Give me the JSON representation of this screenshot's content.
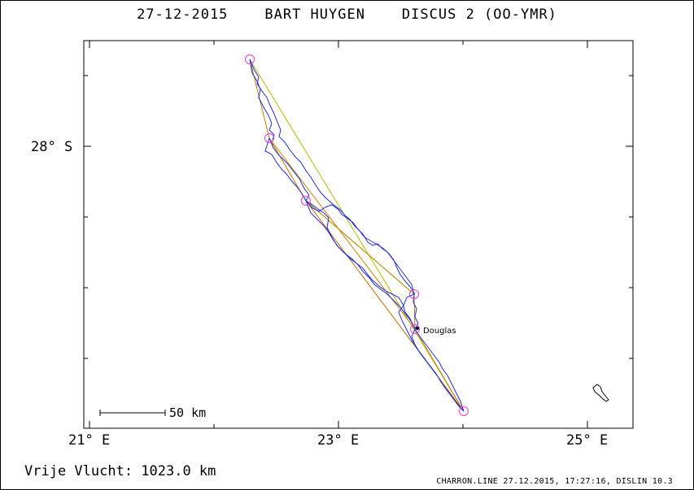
{
  "header": {
    "date": "27-12-2015",
    "pilot": "BART HUYGEN",
    "glider": "DISCUS 2 (OO-YMR)"
  },
  "axes": {
    "lat_label": "28° S",
    "lon_labels": [
      "21° E",
      "23° E",
      "25° E"
    ]
  },
  "scale_bar": {
    "label": "50 km"
  },
  "places": [
    {
      "name": "Douglas"
    }
  ],
  "footer": {
    "distance": "Vrije Vlucht: 1023.0 km",
    "info": "CHARRON.LINE 27.12.2015, 17:27:16, DISLIN 10.3"
  },
  "colors": {
    "track": "#1f2dd6",
    "task_line": "#c88a00",
    "turnpoint": "#e23be0",
    "frame": "#000000"
  },
  "turnpoints": [
    {
      "lon": 22.3,
      "lat": -27.4
    },
    {
      "lon": 22.45,
      "lat": -27.95
    },
    {
      "lon": 22.75,
      "lat": -28.38
    },
    {
      "lon": 23.6,
      "lat": -29.05
    },
    {
      "lon": 23.6,
      "lat": -29.3
    },
    {
      "lon": 24.0,
      "lat": -29.9
    }
  ]
}
